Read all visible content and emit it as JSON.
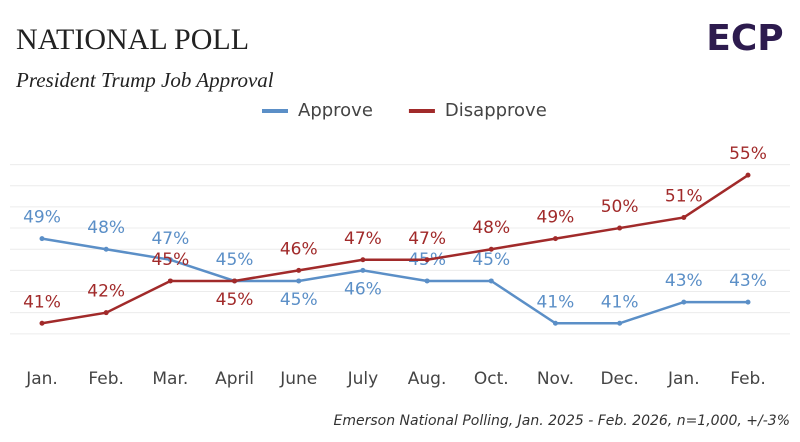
{
  "chart_data": {
    "type": "line",
    "title": "NATIONAL POLL",
    "subtitle": "President Trump Job Approval",
    "logo": "ECP",
    "source": "Emerson National Polling, Jan. 2025 - Feb. 2026, n=1,000, +/-3%",
    "categories": [
      "Jan.",
      "Feb.",
      "Mar.",
      "April",
      "June",
      "July",
      "Aug.",
      "Oct.",
      "Nov.",
      "Dec.",
      "Jan.",
      "Feb."
    ],
    "series": [
      {
        "name": "Approve",
        "color": "#5b8fc7",
        "values": [
          49,
          48,
          47,
          45,
          45,
          46,
          45,
          45,
          41,
          41,
          43,
          43
        ],
        "value_labels": [
          "49%",
          "48%",
          "47%",
          "45%",
          "45%",
          "46%",
          "45%",
          "45%",
          "41%",
          "41%",
          "43%",
          "43%"
        ]
      },
      {
        "name": "Disapprove",
        "color": "#a12a2a",
        "values": [
          41,
          42,
          45,
          45,
          46,
          47,
          47,
          48,
          49,
          50,
          51,
          55
        ],
        "value_labels": [
          "41%",
          "42%",
          "45%",
          "45%",
          "46%",
          "47%",
          "47%",
          "48%",
          "49%",
          "50%",
          "51%",
          "55%"
        ]
      }
    ],
    "ylim": [
      38,
      57
    ],
    "yticks": [
      40,
      42,
      44,
      46,
      48,
      50,
      52,
      54,
      56
    ],
    "grid": true
  }
}
